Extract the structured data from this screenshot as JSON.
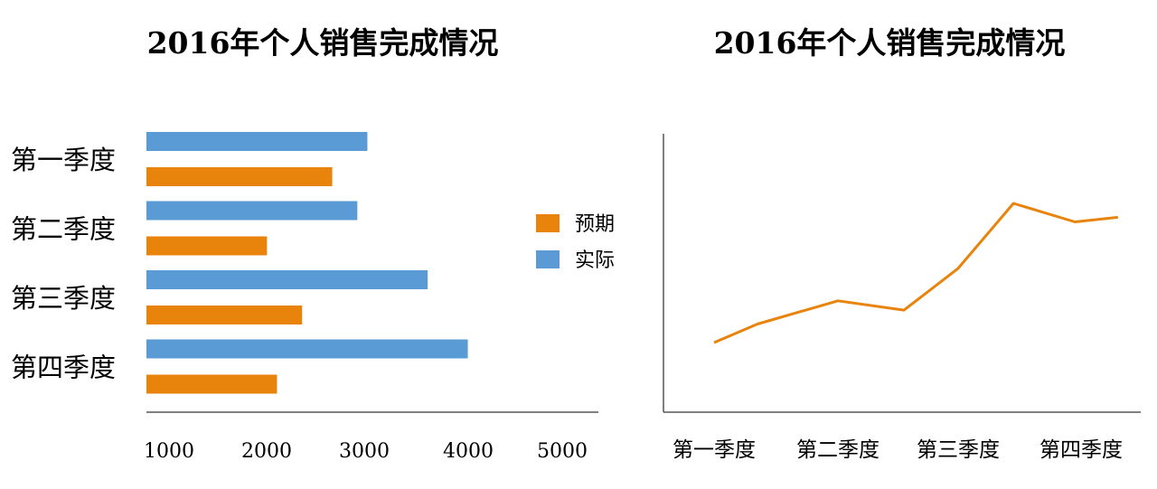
{
  "colors": {
    "expected": "#E8830C",
    "actual": "#5B9BD5",
    "axis": "#555555",
    "text": "#111111"
  },
  "chart_data": [
    {
      "type": "bar",
      "orientation": "horizontal",
      "title": "2016年个人销售完成情况",
      "categories": [
        "第一季度",
        "第二季度",
        "第三季度",
        "第四季度"
      ],
      "series": [
        {
          "name": "实际",
          "values": [
            3200,
            3100,
            3800,
            4200
          ]
        },
        {
          "name": "预期",
          "values": [
            2850,
            2200,
            2550,
            2300
          ]
        }
      ],
      "xticks": [
        "1000",
        "2000",
        "3000",
        "4000",
        "5000"
      ],
      "xlim": [
        1000,
        5500
      ],
      "legend": {
        "position": "right",
        "entries": [
          "预期",
          "实际"
        ]
      },
      "grid": false
    },
    {
      "type": "line",
      "title": "2016年个人销售完成情况",
      "categories": [
        "第一季度",
        "第二季度",
        "第三季度",
        "第四季度"
      ],
      "x": [
        1.0,
        1.35,
        2.0,
        2.55,
        3.0,
        3.45,
        3.95,
        4.3
      ],
      "y": [
        1500,
        1900,
        2400,
        2200,
        3100,
        4500,
        4100,
        4200
      ],
      "ylim": [
        0,
        6000
      ],
      "grid": false
    }
  ]
}
